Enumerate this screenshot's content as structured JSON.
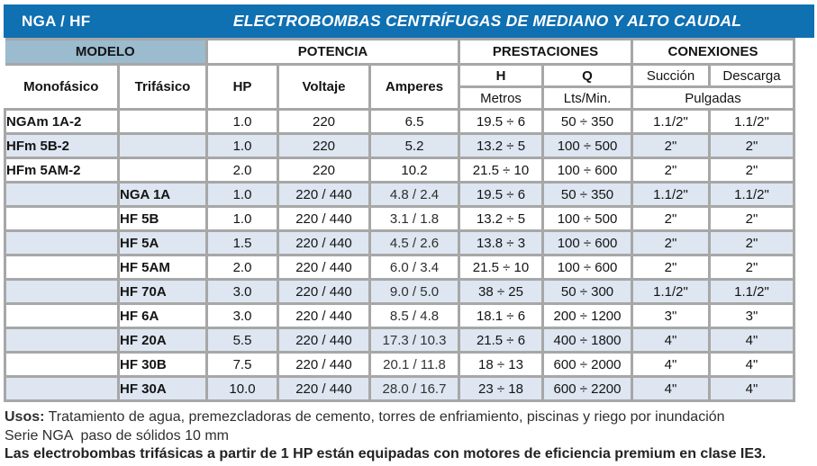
{
  "banner": {
    "code": "NGA / HF",
    "title": "ELECTROBOMBAS CENTRÍFUGAS DE MEDIANO Y ALTO CAUDAL"
  },
  "colors": {
    "banner_blue": "#0f70b2",
    "modelo_header_bg": "#9bbbce",
    "alt_row_bg": "#dde6f1",
    "table_border_gray": "#a7a7a7"
  },
  "table": {
    "groups": {
      "modelo": "MODELO",
      "potencia": "POTENCIA",
      "prestaciones": "PRESTACIONES",
      "conexiones": "CONEXIONES"
    },
    "columns": {
      "monofasico": "Monofásico",
      "trifasico": "Trifásico",
      "hp": "HP",
      "voltaje": "Voltaje",
      "amperes": "Amperes",
      "h": "H",
      "h_unit": "Metros",
      "q": "Q",
      "q_unit": "Lts/Min.",
      "succion": "Succión",
      "descarga": "Descarga",
      "pulgadas": "Pulgadas"
    },
    "rows": [
      {
        "monofasico": "NGAm 1A-2",
        "trifasico": "",
        "hp": "1.0",
        "voltaje": "220",
        "amperes": "6.5",
        "h": "19.5 ÷ 6",
        "q": "50 ÷ 350",
        "succion": "1.1/2\"",
        "descarga": "1.1/2\""
      },
      {
        "monofasico": "HFm 5B-2",
        "trifasico": "",
        "hp": "1.0",
        "voltaje": "220",
        "amperes": "5.2",
        "h": "13.2 ÷ 5",
        "q": "100 ÷ 500",
        "succion": "2\"",
        "descarga": "2\""
      },
      {
        "monofasico": "HFm 5AM-2",
        "trifasico": "",
        "hp": "2.0",
        "voltaje": "220",
        "amperes": "10.2",
        "h": "21.5 ÷ 10",
        "q": "100 ÷ 600",
        "succion": "2\"",
        "descarga": "2\""
      },
      {
        "monofasico": "",
        "trifasico": "NGA 1A",
        "hp": "1.0",
        "voltaje": "220 / 440",
        "amperes": "4.8 / 2.4",
        "h": "19.5 ÷ 6",
        "q": "50 ÷ 350",
        "succion": "1.1/2\"",
        "descarga": "1.1/2\""
      },
      {
        "monofasico": "",
        "trifasico": "HF 5B",
        "hp": "1.0",
        "voltaje": "220 / 440",
        "amperes": "3.1 / 1.8",
        "h": "13.2 ÷ 5",
        "q": "100 ÷ 500",
        "succion": "2\"",
        "descarga": "2\""
      },
      {
        "monofasico": "",
        "trifasico": "HF 5A",
        "hp": "1.5",
        "voltaje": "220 / 440",
        "amperes": "4.5 / 2.6",
        "h": "13.8 ÷ 3",
        "q": "100 ÷ 600",
        "succion": "2\"",
        "descarga": "2\""
      },
      {
        "monofasico": "",
        "trifasico": "HF 5AM",
        "hp": "2.0",
        "voltaje": "220 / 440",
        "amperes": "6.0 / 3.4",
        "h": "21.5 ÷ 10",
        "q": "100 ÷ 600",
        "succion": "2\"",
        "descarga": "2\""
      },
      {
        "monofasico": "",
        "trifasico": "HF 70A",
        "hp": "3.0",
        "voltaje": "220 / 440",
        "amperes": "9.0 / 5.0",
        "h": "38 ÷ 25",
        "q": "50 ÷ 300",
        "succion": "1.1/2\"",
        "descarga": "1.1/2\""
      },
      {
        "monofasico": "",
        "trifasico": "HF 6A",
        "hp": "3.0",
        "voltaje": "220 / 440",
        "amperes": "8.5 / 4.8",
        "h": "18.1 ÷ 6",
        "q": "200 ÷ 1200",
        "succion": "3\"",
        "descarga": "3\""
      },
      {
        "monofasico": "",
        "trifasico": "HF 20A",
        "hp": "5.5",
        "voltaje": "220 / 440",
        "amperes": "17.3 / 10.3",
        "h": "21.5 ÷ 6",
        "q": "400 ÷ 1800",
        "succion": "4\"",
        "descarga": "4\""
      },
      {
        "monofasico": "",
        "trifasico": "HF 30B",
        "hp": "7.5",
        "voltaje": "220 / 440",
        "amperes": "20.1 / 11.8",
        "h": "18 ÷ 13",
        "q": "600 ÷ 2000",
        "succion": "4\"",
        "descarga": "4\""
      },
      {
        "monofasico": "",
        "trifasico": "HF 30A",
        "hp": "10.0",
        "voltaje": "220 / 440",
        "amperes": "28.0 / 16.7",
        "h": "23 ÷ 18",
        "q": "600 ÷ 2200",
        "succion": "4\"",
        "descarga": "4\""
      }
    ]
  },
  "footer": {
    "usos_label": "Usos:",
    "usos_text": " Tratamiento de agua, premezcladoras de cemento, torres de enfriamiento, piscinas y riego por inundación",
    "serie_text": "Serie NGA  paso de sólidos 10 mm",
    "nota_text": "Las electrobombas trifásicas a partir de 1 HP están equipadas con motores de eficiencia premium en clase IE3."
  }
}
